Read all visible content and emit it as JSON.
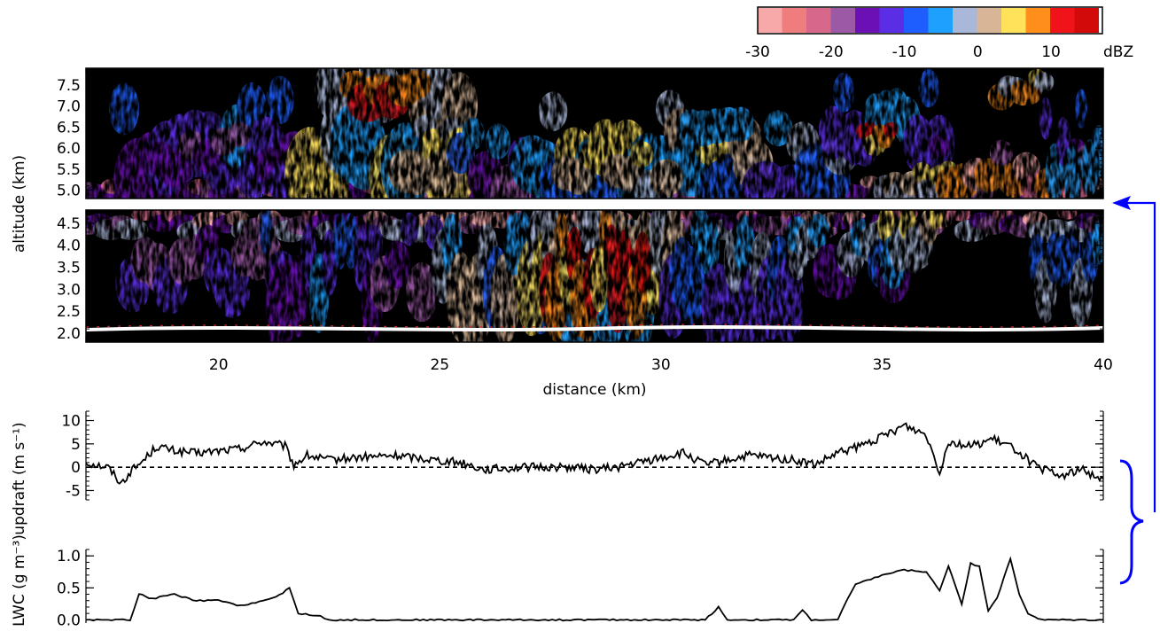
{
  "figure": {
    "background": "#ffffff",
    "frame_color": "#000000",
    "annotation_color": "#0000ff"
  },
  "colorbar": {
    "unit": "dBZ",
    "ticks": [
      -30,
      -20,
      -10,
      0,
      10
    ],
    "range": [
      -30,
      17
    ],
    "colors": [
      "#f7a9a9",
      "#ef7d7d",
      "#d7688c",
      "#9c5aa6",
      "#6a10b4",
      "#5b2ee6",
      "#1e5eff",
      "#1ea0ff",
      "#a9b7d8",
      "#d7b596",
      "#ffe25a",
      "#ff8e1a",
      "#f0141a",
      "#d20a0a"
    ]
  },
  "chart_data": [
    {
      "type": "heatmap",
      "xlabel": "distance (km)",
      "ylabel": "altitude (km)",
      "xlim": [
        17,
        40
      ],
      "ylim": [
        1.8,
        7.9
      ],
      "xticks": [
        20,
        25,
        30,
        35,
        40
      ],
      "upper_panel": {
        "ylim": [
          4.8,
          7.9
        ],
        "yticks": [
          "5.0",
          "5.5",
          "6.0",
          "6.5",
          "7.0",
          "7.5"
        ]
      },
      "lower_panel": {
        "ylim": [
          1.8,
          4.8
        ],
        "yticks": [
          "2.0",
          "2.5",
          "3.0",
          "3.5",
          "4.0",
          "4.5"
        ]
      },
      "ground_level_km": 2.15,
      "features": [
        {
          "kind": "convective core",
          "x": [
            27.5,
            29.7
          ],
          "y": [
            2.3,
            4.6
          ],
          "max_dBZ": 15
        },
        {
          "kind": "echo top above 7.5 km",
          "x": [
            23.8,
            26.5
          ],
          "max_dBZ": 10
        },
        {
          "kind": "elevated cell",
          "x": [
            35.1,
            35.3
          ],
          "y": [
            6.2,
            6.6
          ],
          "max_dBZ": 12
        },
        {
          "kind": "elevated cell",
          "x": [
            37.2,
            37.7
          ],
          "y": [
            7.3,
            7.7
          ],
          "max_dBZ": 10
        }
      ]
    },
    {
      "type": "line",
      "ylabel": "updraft (m s⁻¹)",
      "xlim": [
        17,
        40
      ],
      "ylim": [
        -7,
        12
      ],
      "yticks": [
        -5,
        0,
        5,
        10
      ],
      "reference_line": {
        "y": 0,
        "style": "dashed"
      },
      "x": [
        17.0,
        17.5,
        17.8,
        18.0,
        18.3,
        18.6,
        19.0,
        19.5,
        20.0,
        20.5,
        21.0,
        21.5,
        21.7,
        22.0,
        22.5,
        23.0,
        24.0,
        25.0,
        25.5,
        26.0,
        27.0,
        28.0,
        28.5,
        29.0,
        30.0,
        30.5,
        31.0,
        32.0,
        33.0,
        33.5,
        34.0,
        34.5,
        35.0,
        35.5,
        36.0,
        36.3,
        36.5,
        37.0,
        37.5,
        38.0,
        38.5,
        38.8,
        39.0,
        39.5,
        40.0
      ],
      "values": [
        1.0,
        0.0,
        -3.5,
        -1.0,
        1.5,
        4.5,
        3.5,
        3.0,
        3.5,
        4.0,
        5.5,
        4.5,
        0.5,
        2.5,
        1.5,
        2.0,
        2.5,
        1.5,
        1.0,
        -0.5,
        0.0,
        0.0,
        -0.5,
        0.0,
        2.0,
        3.0,
        0.5,
        2.5,
        1.5,
        0.5,
        3.0,
        4.5,
        6.5,
        9.0,
        7.0,
        -1.0,
        5.5,
        4.5,
        6.0,
        4.0,
        0.0,
        -1.0,
        -2.0,
        -0.5,
        -2.5
      ]
    },
    {
      "type": "line",
      "ylabel": "LWC (g m⁻³)",
      "xlim": [
        17,
        40
      ],
      "ylim": [
        -0.05,
        1.1
      ],
      "yticks": [
        "0.0",
        "0.5",
        "1.0"
      ],
      "x": [
        17.0,
        18.0,
        18.2,
        18.5,
        19.0,
        19.5,
        20.0,
        20.5,
        21.0,
        21.3,
        21.6,
        21.8,
        22.3,
        22.5,
        23.5,
        26.0,
        29.0,
        31.0,
        31.3,
        31.5,
        32.0,
        33.0,
        33.2,
        33.4,
        34.0,
        34.2,
        34.4,
        35.0,
        35.5,
        36.0,
        36.3,
        36.5,
        36.8,
        37.0,
        37.2,
        37.4,
        37.6,
        37.9,
        38.1,
        38.3,
        38.6,
        39.0,
        40.0
      ],
      "values": [
        0.0,
        0.0,
        0.4,
        0.33,
        0.4,
        0.3,
        0.3,
        0.22,
        0.3,
        0.35,
        0.5,
        0.1,
        0.06,
        0.0,
        0.0,
        0.0,
        0.0,
        0.0,
        0.2,
        0.0,
        0.0,
        0.0,
        0.15,
        0.0,
        0.0,
        0.3,
        0.55,
        0.7,
        0.78,
        0.75,
        0.45,
        0.85,
        0.25,
        0.88,
        0.83,
        0.15,
        0.35,
        0.95,
        0.4,
        0.1,
        0.0,
        0.0,
        0.0
      ]
    }
  ]
}
